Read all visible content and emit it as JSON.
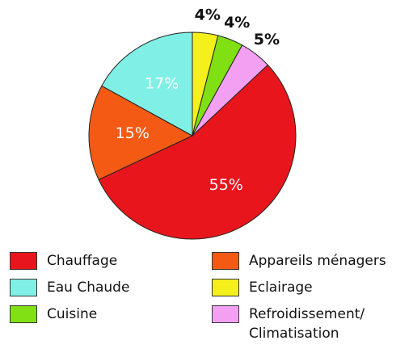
{
  "chart_data": {
    "type": "pie",
    "categories": [
      "Chauffage",
      "Appareils ménagers",
      "Eau Chaude",
      "Eclairage",
      "Cuisine",
      "Refroidissement/ Climatisation"
    ],
    "values": [
      55,
      15,
      17,
      4,
      4,
      5
    ],
    "value_labels": [
      "55%",
      "15%",
      "17%",
      "4%",
      "4%",
      "5%"
    ],
    "colors": [
      "#e8161c",
      "#f45a14",
      "#80f0e6",
      "#f4f01c",
      "#80e014",
      "#f4a0f2"
    ]
  }
}
